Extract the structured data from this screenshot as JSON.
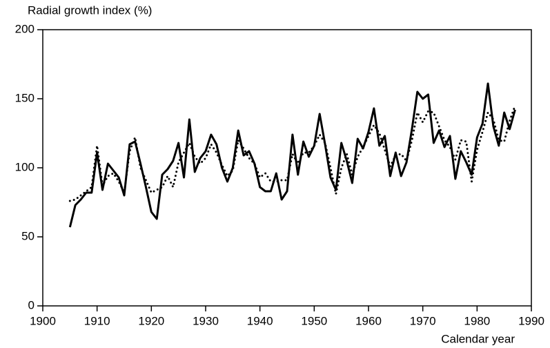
{
  "chart_data": {
    "type": "line",
    "y_label": "Radial growth index (%)",
    "x_label": "Calendar year",
    "x": [
      1905,
      1906,
      1907,
      1908,
      1909,
      1910,
      1911,
      1912,
      1913,
      1914,
      1915,
      1916,
      1917,
      1918,
      1919,
      1920,
      1921,
      1922,
      1923,
      1924,
      1925,
      1926,
      1927,
      1928,
      1929,
      1930,
      1931,
      1932,
      1933,
      1934,
      1935,
      1936,
      1937,
      1938,
      1939,
      1940,
      1941,
      1942,
      1943,
      1944,
      1945,
      1946,
      1947,
      1948,
      1949,
      1950,
      1951,
      1952,
      1953,
      1954,
      1955,
      1956,
      1957,
      1958,
      1959,
      1960,
      1961,
      1962,
      1963,
      1964,
      1965,
      1966,
      1967,
      1968,
      1969,
      1970,
      1971,
      1972,
      1973,
      1974,
      1975,
      1976,
      1977,
      1978,
      1979,
      1980,
      1981,
      1982,
      1983,
      1984,
      1985,
      1986,
      1987
    ],
    "series": [
      {
        "color": "#000000",
        "style": "solid",
        "values": [
          57,
          73,
          77,
          82,
          82,
          111,
          84,
          103,
          98,
          93,
          80,
          117,
          119,
          103,
          86,
          68,
          63,
          95,
          99,
          105,
          118,
          93,
          135,
          97,
          107,
          112,
          124,
          117,
          100,
          90,
          100,
          127,
          109,
          112,
          103,
          86,
          83,
          83,
          96,
          77,
          83,
          124,
          95,
          119,
          108,
          116,
          139,
          117,
          93,
          84,
          118,
          105,
          89,
          121,
          114,
          126,
          143,
          116,
          123,
          94,
          111,
          94,
          104,
          128,
          155,
          150,
          153,
          118,
          127,
          115,
          123,
          92,
          112,
          104,
          95,
          122,
          132,
          161,
          130,
          116,
          140,
          128,
          142
        ]
      },
      {
        "color": "#000000",
        "style": "dotted",
        "values": [
          76,
          77,
          80,
          83,
          86,
          116,
          87,
          94,
          96,
          90,
          82,
          112,
          122,
          100,
          91,
          82,
          84,
          86,
          94,
          86,
          104,
          111,
          118,
          108,
          103,
          107,
          117,
          111,
          102,
          94,
          98,
          120,
          114,
          107,
          103,
          93,
          96,
          90,
          90,
          91,
          91,
          110,
          103,
          111,
          111,
          116,
          124,
          118,
          100,
          81,
          100,
          110,
          95,
          108,
          115,
          123,
          131,
          125,
          113,
          101,
          109,
          110,
          105,
          120,
          140,
          133,
          141,
          140,
          130,
          120,
          115,
          106,
          120,
          119,
          90,
          113,
          126,
          140,
          135,
          120,
          119,
          134,
          145
        ]
      }
    ],
    "xlim": [
      1900,
      1990
    ],
    "xticks": [
      1900,
      1910,
      1920,
      1930,
      1940,
      1950,
      1960,
      1970,
      1980,
      1990
    ],
    "ylim": [
      0,
      200
    ],
    "yticks": [
      0,
      50,
      100,
      150,
      200
    ],
    "grid": false
  }
}
